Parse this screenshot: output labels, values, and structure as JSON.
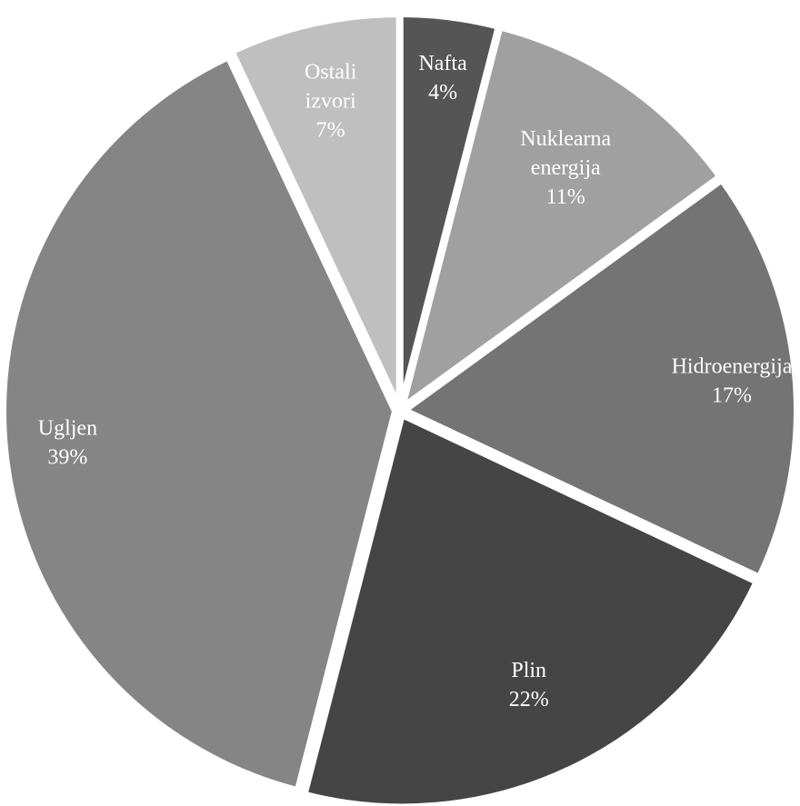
{
  "chart_data": {
    "type": "pie",
    "title": "",
    "label_format": "{name} {percent}%",
    "start_angle_deg": 0,
    "direction": "clockwise",
    "slices": [
      {
        "id": "nafta",
        "name_lines": [
          "Nafta"
        ],
        "value": 4,
        "color": "#555555",
        "label_color": "#ffffff"
      },
      {
        "id": "nuklearna-energija",
        "name_lines": [
          "Nuklearna",
          "energija"
        ],
        "value": 11,
        "color": "#a0a0a0",
        "label_color": "#ffffff"
      },
      {
        "id": "hidroenergija",
        "name_lines": [
          "Hidroenergija"
        ],
        "value": 17,
        "color": "#747474",
        "label_color": "#ffffff"
      },
      {
        "id": "plin",
        "name_lines": [
          "Plin"
        ],
        "value": 22,
        "color": "#454545",
        "label_color": "#ffffff"
      },
      {
        "id": "ugljen",
        "name_lines": [
          "Ugljen"
        ],
        "value": 39,
        "color": "#858585",
        "label_color": "#ffffff"
      },
      {
        "id": "ostali-izvori",
        "name_lines": [
          "Ostali",
          "izvori"
        ],
        "value": 7,
        "color": "#bfbfbf",
        "label_color": "#ffffff"
      }
    ],
    "legend": false,
    "background_color": "#ffffff",
    "separator_color": "#ffffff"
  }
}
